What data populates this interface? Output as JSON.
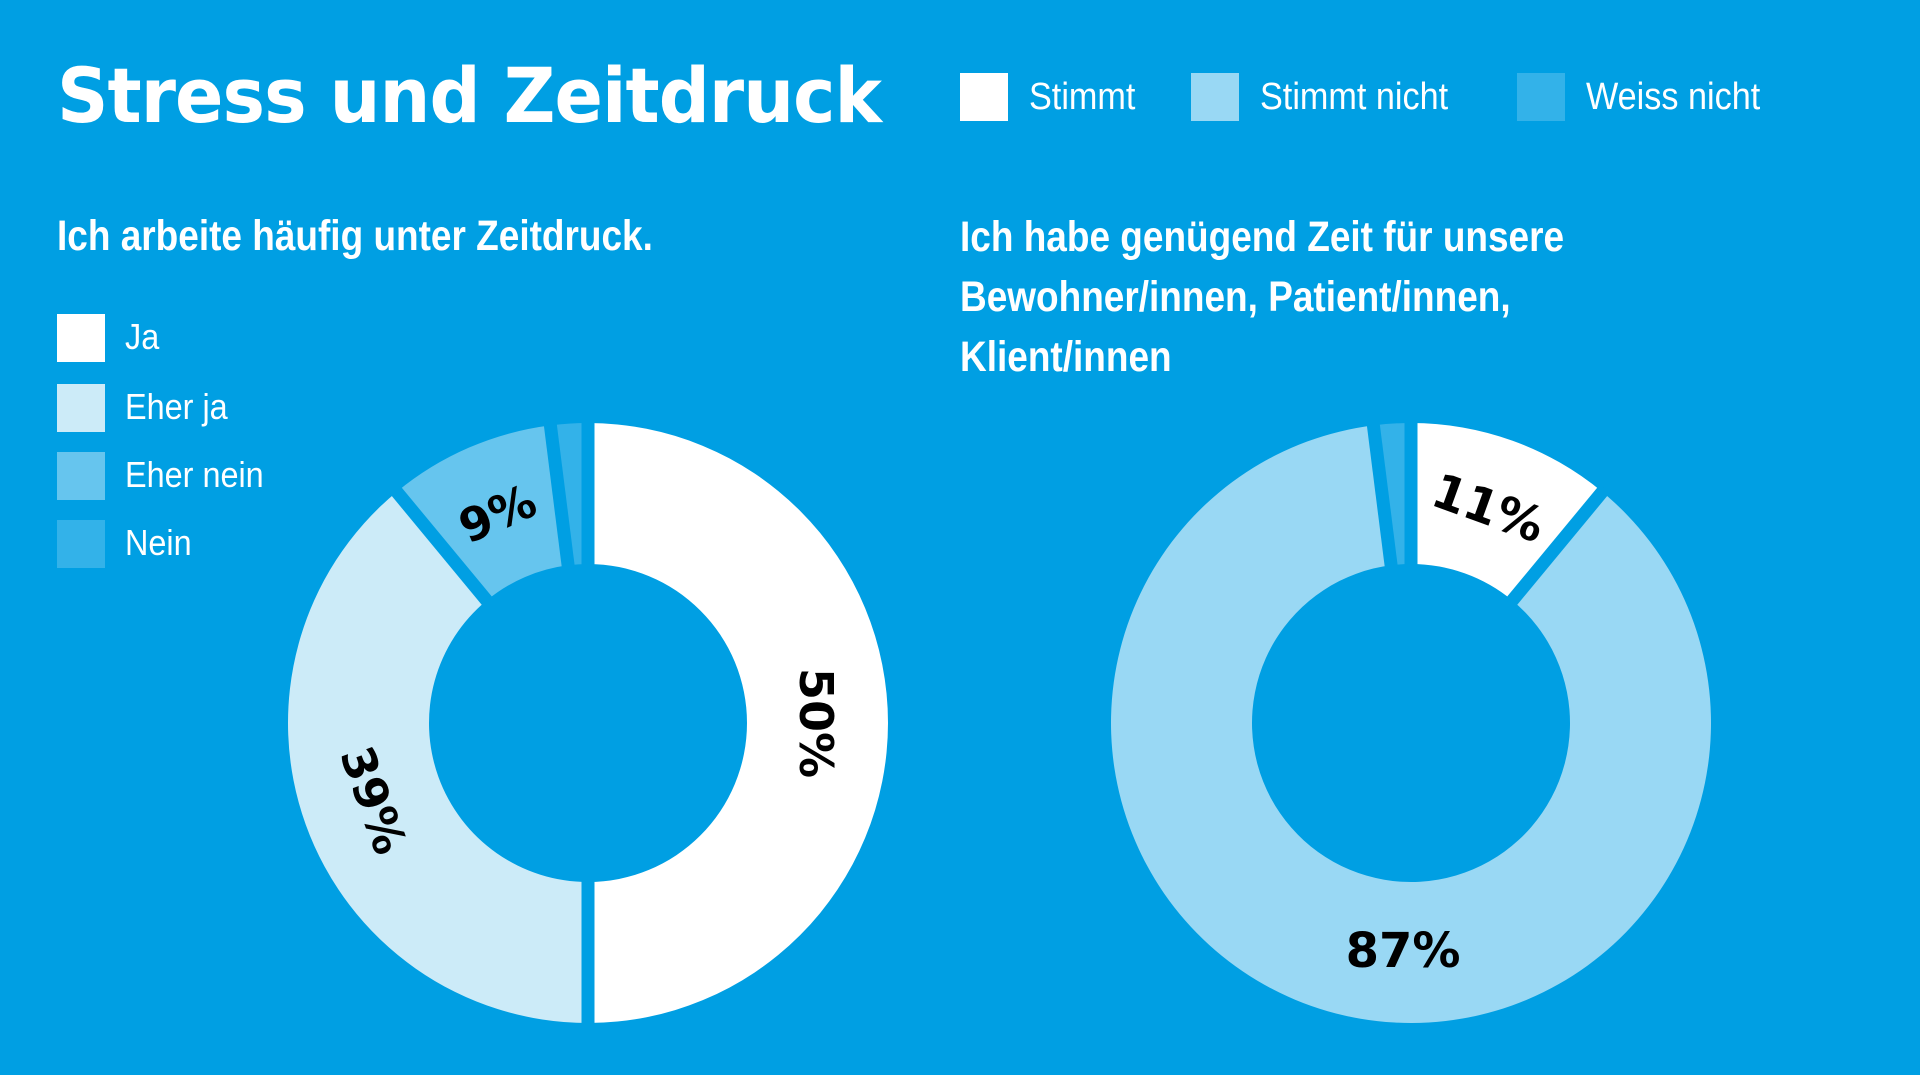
{
  "title": "Stress und Zeitdruck",
  "colors": {
    "background": "#009FE3",
    "ja": "#FFFFFF",
    "eher_ja": "#CCEBF8",
    "eher_nein": "#66C5EE",
    "nein": "#33B2E9",
    "stimmt": "#FFFFFF",
    "stimmt_nicht": "#99D8F4",
    "weiss_nicht": "#33B2E9",
    "label": "#000000"
  },
  "top_legend": [
    {
      "label": "Stimmt",
      "color": "#FFFFFF"
    },
    {
      "label": "Stimmt nicht",
      "color": "#99D8F4"
    },
    {
      "label": "Weiss nicht",
      "color": "#33B2E9"
    }
  ],
  "chart_data": [
    {
      "type": "pie",
      "variant": "donut",
      "title": "Ich arbeite häufig unter Zeitdruck.",
      "legend_position": "left",
      "categories": [
        "Ja",
        "Eher ja",
        "Eher nein",
        "Nein"
      ],
      "values": [
        50,
        39,
        9,
        2
      ],
      "labels": [
        "50%",
        "39%",
        "9%",
        ""
      ],
      "colors": [
        "#FFFFFF",
        "#CCEBF8",
        "#66C5EE",
        "#33B2E9"
      ],
      "unit": "%"
    },
    {
      "type": "pie",
      "variant": "donut",
      "title_lines": [
        "Ich habe genügend Zeit für unsere",
        "Bewohner/innen, Patient/innen,",
        "Klient/innen"
      ],
      "legend_position": "top",
      "categories": [
        "Stimmt",
        "Stimmt nicht",
        "Weiss nicht"
      ],
      "values": [
        11,
        87,
        2
      ],
      "labels": [
        "11%",
        "87%",
        ""
      ],
      "colors": [
        "#FFFFFF",
        "#99D8F4",
        "#33B2E9"
      ],
      "unit": "%"
    }
  ]
}
